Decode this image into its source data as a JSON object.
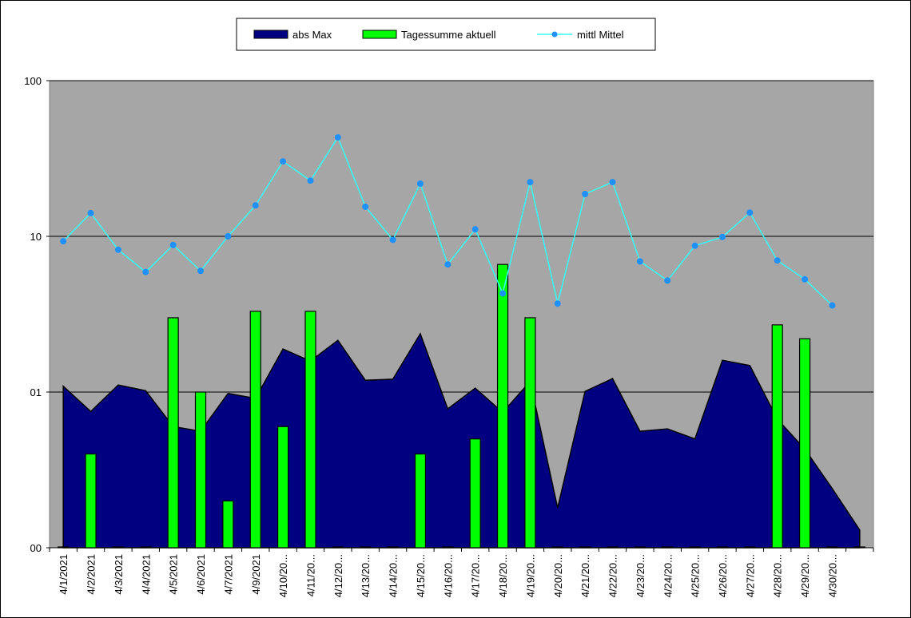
{
  "chart_data": {
    "type": "combo",
    "log_scale": true,
    "grid": true,
    "legend": "top",
    "categories": [
      "4/1/2021",
      "4/2/2021",
      "4/3/2021",
      "4/4/2021",
      "4/5/2021",
      "4/6/2021",
      "4/7/2021",
      "4/9/2021",
      "4/10/20...",
      "4/11/20...",
      "4/12/20...",
      "4/13/20...",
      "4/14/20...",
      "4/15/20...",
      "4/16/20...",
      "4/17/20...",
      "4/18/20...",
      "4/19/20...",
      "4/20/20...",
      "4/21/20...",
      "4/22/20...",
      "4/23/20...",
      "4/24/20...",
      "4/25/20...",
      "4/26/20...",
      "4/27/20...",
      "4/28/20...",
      "4/29/20...",
      "4/30/20...",
      null
    ],
    "ylim": [
      0.1,
      100
    ],
    "yticks": [
      {
        "value": 0.1,
        "label": "00"
      },
      {
        "value": 1,
        "label": "01"
      },
      10,
      100
    ],
    "series": [
      {
        "name": "abs Max",
        "kind": "area",
        "color": "#000080",
        "values": [
          1.09,
          0.75,
          1.11,
          1.02,
          0.6,
          0.56,
          0.98,
          0.91,
          1.89,
          1.58,
          2.15,
          1.19,
          1.21,
          2.37,
          0.78,
          1.06,
          0.74,
          1.17,
          0.18,
          1.01,
          1.22,
          0.56,
          0.58,
          0.5,
          1.6,
          1.48,
          0.67,
          0.43,
          0.24,
          0.13
        ]
      },
      {
        "name": "Tagessumme aktuell",
        "kind": "bar",
        "color": "#00ff00",
        "values": [
          0,
          0.4,
          0,
          0,
          3.0,
          1.0,
          0.2,
          3.3,
          0.6,
          3.3,
          0,
          0,
          0,
          0.4,
          0,
          0.5,
          6.6,
          3.0,
          0,
          0,
          0,
          0,
          0,
          0,
          0,
          0,
          2.7,
          2.2,
          0,
          0
        ]
      },
      {
        "name": "mittl Mittel",
        "kind": "line",
        "color": "#33ffff",
        "marker_color": "#1e90ff",
        "values": [
          9.3,
          14.1,
          8.2,
          5.9,
          8.8,
          6.0,
          10.0,
          15.8,
          30.3,
          22.8,
          43.2,
          15.5,
          9.5,
          21.8,
          6.6,
          11.1,
          4.3,
          22.3,
          3.7,
          18.7,
          22.3,
          6.9,
          5.2,
          8.7,
          9.9,
          14.2,
          7.0,
          5.3,
          3.6,
          null
        ]
      }
    ]
  }
}
